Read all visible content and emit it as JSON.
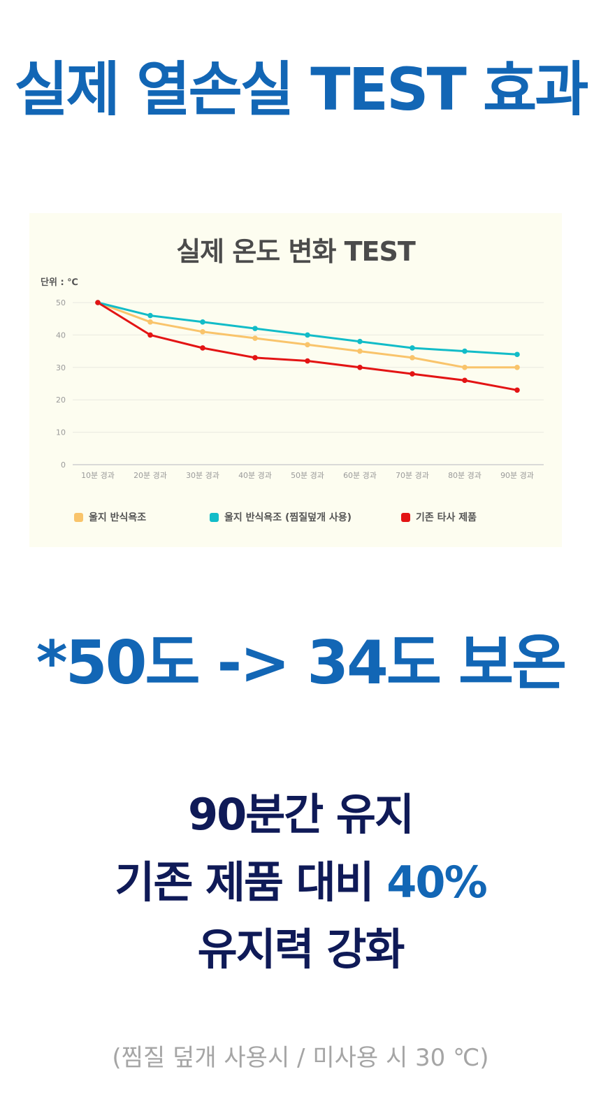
{
  "page": {
    "title": "실제 열손실 TEST 효과",
    "headline": "*50도 -> 34도 보온",
    "body_line1": "90분간 유지",
    "body_line2_prefix": "기존 제품 대비 ",
    "body_line2_highlight": "40%",
    "body_line3": "유지력 강화",
    "footnote": "(찜질 덮개 사용시 / 미사용 시 30 ℃)",
    "colors": {
      "brand_blue": "#1266b5",
      "navy": "#0f1a57",
      "note_gray": "#a5a5a5",
      "panel_bg": "#fdfdf0"
    }
  },
  "chart_data": {
    "type": "line",
    "title": "실제 온도 변화 TEST",
    "unit_label": "단위 : ℃",
    "xlabel": "",
    "ylabel": "",
    "ylim": [
      0,
      50
    ],
    "yticks": [
      0,
      10,
      20,
      30,
      40,
      50
    ],
    "grid": true,
    "legend_position": "bottom",
    "categories": [
      "10분 경과",
      "20분 경과",
      "30분 경과",
      "40분 경과",
      "50분 경과",
      "60분 경과",
      "70분 경과",
      "80분 경과",
      "90분 경과"
    ],
    "series": [
      {
        "name": "울지 반식욕조",
        "color": "#f9c46b",
        "values": [
          50,
          44,
          41,
          39,
          37,
          35,
          33,
          30,
          30
        ]
      },
      {
        "name": "울지 반식욕조 (찜질덮개 사용)",
        "color": "#12bcc8",
        "values": [
          50,
          46,
          44,
          42,
          40,
          38,
          36,
          35,
          34
        ]
      },
      {
        "name": "기존 타사 제품",
        "color": "#e31414",
        "values": [
          50,
          40,
          36,
          33,
          32,
          30,
          28,
          26,
          23
        ]
      }
    ]
  }
}
